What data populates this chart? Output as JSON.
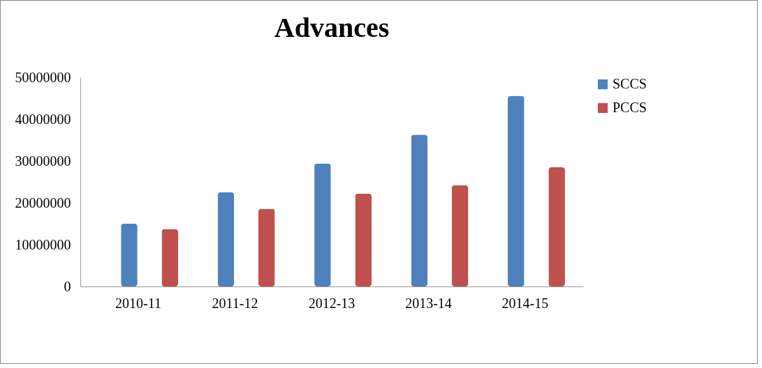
{
  "chart_data": {
    "type": "bar",
    "title": "Advances",
    "categories": [
      "2010-11",
      "2011-12",
      "2012-13",
      "2013-14",
      "2014-15"
    ],
    "series": [
      {
        "name": "SCCS",
        "color": "#4f81bd",
        "values": [
          15000000,
          22500000,
          29400000,
          36300000,
          45600000
        ]
      },
      {
        "name": "PCCS",
        "color": "#c0504d",
        "values": [
          13700000,
          18600000,
          22200000,
          24200000,
          28500000
        ]
      }
    ],
    "ylim": [
      0,
      50000000
    ],
    "yticks": [
      0,
      10000000,
      20000000,
      30000000,
      40000000,
      50000000
    ],
    "grid": false,
    "legend": "right"
  }
}
